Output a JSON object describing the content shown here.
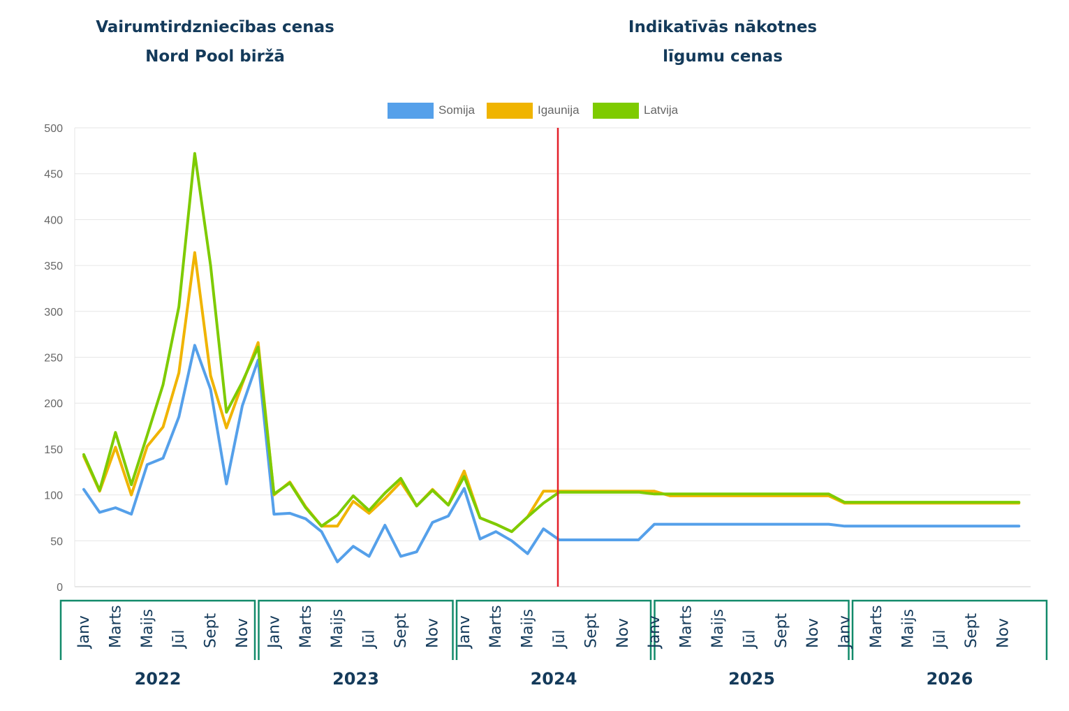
{
  "headings": {
    "left": [
      "Vairumtirdzniecības cenas",
      "Nord Pool biržā"
    ],
    "right": [
      "Indikatīvās nākotnes",
      "līgumu cenas"
    ]
  },
  "chart_data": {
    "type": "line",
    "ylim": [
      0,
      500
    ],
    "yticks": [
      0,
      50,
      100,
      150,
      200,
      250,
      300,
      350,
      400,
      450,
      500
    ],
    "grid": true,
    "legend_position": "top-center",
    "month_labels": [
      "Janv",
      "Marts",
      "Maijs",
      "Jūl",
      "Sept",
      "Nov"
    ],
    "years": [
      "2022",
      "2023",
      "2024",
      "2025",
      "2026"
    ],
    "divider_month_index": 30,
    "divider_color": "#e3202a",
    "frame_color": "#128a6a",
    "series": [
      {
        "name": "Somija",
        "color": "#55a0ea",
        "values": [
          106,
          81,
          86,
          79,
          133,
          140,
          185,
          263,
          215,
          112,
          197,
          247,
          79,
          80,
          74,
          60,
          27,
          44,
          33,
          67,
          33,
          38,
          70,
          77,
          107,
          52,
          60,
          50,
          36,
          63,
          51,
          51,
          51,
          51,
          51,
          51,
          68,
          68,
          68,
          68,
          68,
          68,
          68,
          68,
          68,
          68,
          68,
          68,
          66,
          66,
          66,
          66,
          66,
          66,
          66,
          66,
          66,
          66,
          66,
          66
        ]
      },
      {
        "name": "Igaunija",
        "color": "#f0b400",
        "values": [
          142,
          104,
          152,
          100,
          153,
          174,
          233,
          364,
          230,
          173,
          221,
          266,
          100,
          114,
          87,
          66,
          66,
          93,
          80,
          96,
          114,
          88,
          106,
          89,
          126,
          75,
          68,
          60,
          76,
          104,
          104,
          104,
          104,
          104,
          104,
          104,
          104,
          99,
          99,
          99,
          99,
          99,
          99,
          99,
          99,
          99,
          99,
          99,
          91,
          91,
          91,
          91,
          91,
          91,
          91,
          91,
          91,
          91,
          91,
          91
        ]
      },
      {
        "name": "Latvija",
        "color": "#7ecb00",
        "values": [
          144,
          105,
          168,
          111,
          165,
          220,
          305,
          472,
          350,
          190,
          223,
          261,
          101,
          113,
          86,
          66,
          78,
          99,
          83,
          102,
          118,
          88,
          105,
          89,
          120,
          75,
          68,
          60,
          76,
          91,
          103,
          103,
          103,
          103,
          103,
          103,
          101,
          101,
          101,
          101,
          101,
          101,
          101,
          101,
          101,
          101,
          101,
          101,
          92,
          92,
          92,
          92,
          92,
          92,
          92,
          92,
          92,
          92,
          92,
          92
        ]
      }
    ]
  }
}
